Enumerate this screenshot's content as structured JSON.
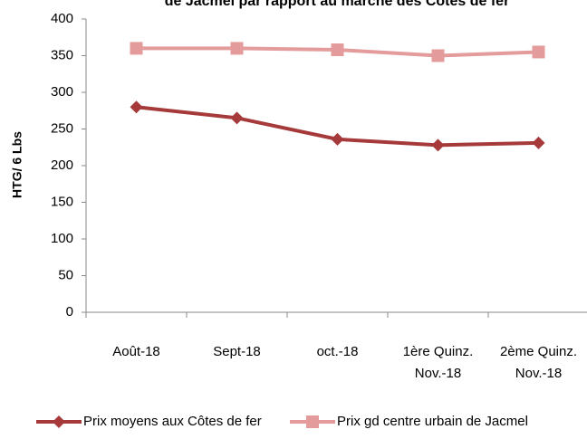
{
  "chart_data": {
    "type": "line",
    "title": "de Jacmel par rapport au marché des Côtes de fer",
    "y_label": "HTG/ 6 Lbs",
    "categories": [
      "Août-18",
      "Sept-18",
      "oct.-18",
      "1ère Quinz. Nov.-18",
      "2ème Quinz. Nov.-18"
    ],
    "series": [
      {
        "name": "Prix moyens aux Côtes de fer",
        "color": "#a63a3a",
        "marker": "diamond",
        "values": [
          280,
          265,
          236,
          228,
          231
        ]
      },
      {
        "name": "Prix gd centre urbain de Jacmel",
        "color": "#e39c9b",
        "marker": "square",
        "values": [
          360,
          360,
          358,
          350,
          355
        ]
      }
    ],
    "ylim": [
      0,
      400
    ],
    "yticks": [
      0,
      50,
      100,
      150,
      200,
      250,
      300,
      350,
      400
    ],
    "grid": false,
    "legend": "bottom"
  }
}
